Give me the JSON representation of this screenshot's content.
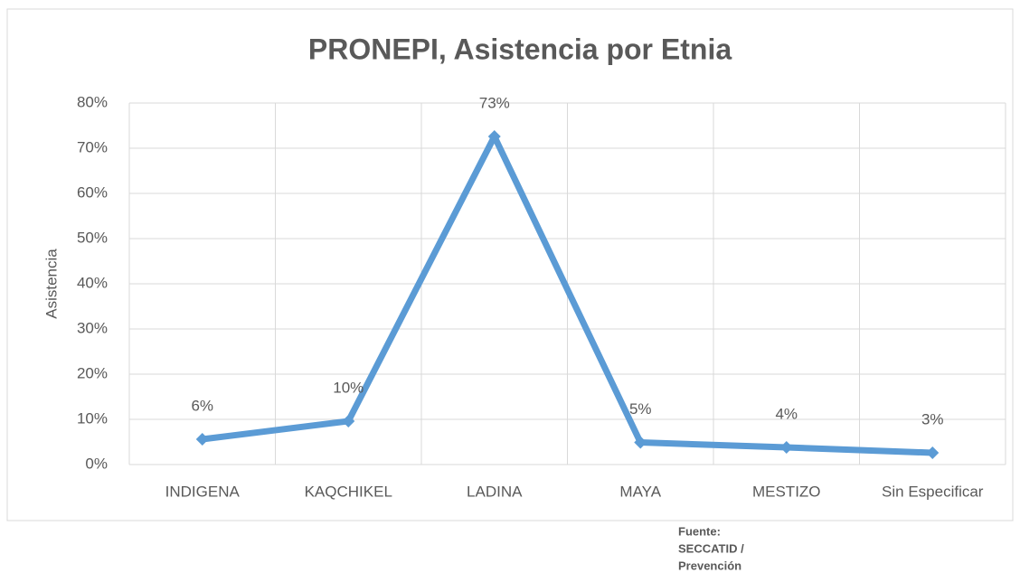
{
  "chart_data": {
    "type": "line",
    "title": "PRONEPI, Asistencia por Etnia",
    "y_label": "Asistencia",
    "categories": [
      "INDIGENA",
      "KAQCHIKEL",
      "LADINA",
      "MAYA",
      "MESTIZO",
      "Sin Especificar"
    ],
    "series": [
      {
        "name": "Asistencia",
        "color": "#5b9bd5",
        "values": [
          5.6,
          9.6,
          72.6,
          4.9,
          3.8,
          2.6
        ],
        "value_labels": [
          "6%",
          "10%",
          "73%",
          "5%",
          "4%",
          "3%"
        ]
      }
    ],
    "ylim": [
      0,
      80
    ],
    "yticks": [
      {
        "value": 0,
        "label": "0%"
      },
      {
        "value": 10,
        "label": "10%"
      },
      {
        "value": 20,
        "label": "20%"
      },
      {
        "value": 30,
        "label": "30%"
      },
      {
        "value": 40,
        "label": "40%"
      },
      {
        "value": 50,
        "label": "50%"
      },
      {
        "value": 60,
        "label": "60%"
      },
      {
        "value": 70,
        "label": "70%"
      },
      {
        "value": 80,
        "label": "80%"
      }
    ],
    "grid": true,
    "source": [
      "Fuente:",
      "SECCATID /",
      "Prevención"
    ]
  }
}
